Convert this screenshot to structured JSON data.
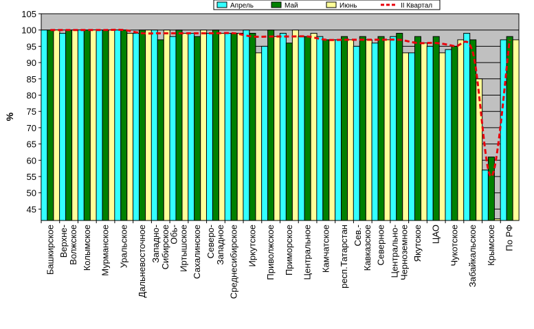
{
  "chart_data": {
    "type": "bar",
    "ylabel": "%",
    "ylim": [
      41.5,
      105
    ],
    "yticks": [
      45,
      50,
      55,
      60,
      65,
      70,
      75,
      80,
      85,
      90,
      95,
      100,
      105
    ],
    "grid": true,
    "legend_position": "top-right",
    "categories": [
      "Башкирское",
      "Верхне-Волжское",
      "Колымское",
      "Мурманское",
      "Уральское",
      "Дальневосточное",
      "Западно-Сибирское",
      "Обь-Иртышское",
      "Сахалинское",
      "Северо-Западное",
      "Среднесибирское",
      "Иркутское",
      "Приволжское",
      "Приморское",
      "Центральное",
      "Камчатское",
      "респ.Татарстан",
      "Сев.-Кавказское",
      "Северное",
      "Центрально-Черноземное",
      "Якутское",
      "ЦАО",
      "Чукотское",
      "Забайкальское",
      "Крымское",
      "По РФ"
    ],
    "series": [
      {
        "name": "Апрель",
        "color": "#33ffff",
        "values": [
          100,
          99,
          100,
          100,
          100,
          99,
          100,
          98,
          99,
          99,
          99,
          100,
          95,
          99,
          98,
          98,
          97,
          95,
          96,
          98,
          93,
          95,
          94,
          99,
          57,
          97
        ]
      },
      {
        "name": "Май",
        "color": "#008000",
        "values": [
          100,
          100,
          100,
          100,
          100,
          100,
          97,
          100,
          98,
          100,
          99,
          99,
          100,
          96,
          98,
          97,
          98,
          98,
          98,
          99,
          98,
          98,
          95,
          97,
          61,
          98
        ]
      },
      {
        "name": "Июнь",
        "color": "#ffff99",
        "values": [
          100,
          100,
          100,
          100,
          99,
          100,
          100,
          99,
          100,
          99,
          99,
          93,
          98,
          100,
          99,
          97,
          97,
          97,
          97,
          93,
          96,
          93,
          97,
          85,
          42,
          97
        ]
      },
      {
        "name": "II Квартал",
        "color": "#e8000b",
        "style": "dashed-line",
        "values": [
          100,
          100,
          100,
          100,
          100,
          99,
          99,
          99,
          99,
          99,
          99,
          98,
          98,
          98,
          98,
          97,
          97,
          97,
          97,
          97,
          96,
          96,
          95,
          93,
          55,
          97
        ]
      }
    ]
  }
}
